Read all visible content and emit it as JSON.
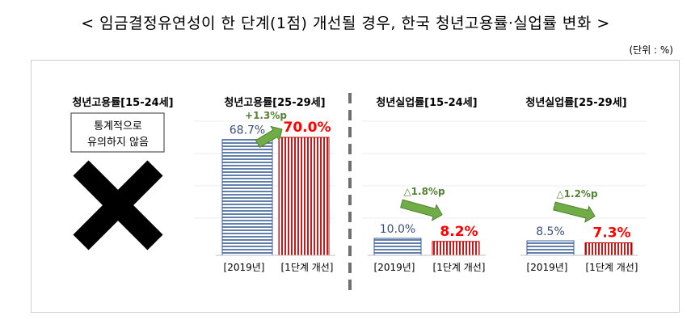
{
  "header": {
    "title": "< 임금결정유연성이 한 단계(1점) 개선될 경우, 한국 청년고용률·실업률 변화 >",
    "unit": "(단위 : %)"
  },
  "colors": {
    "baseline_stroke": "#3a5f9a",
    "improved_stroke": "#c00000",
    "arrow": "#70ad47",
    "change_text": "#548235",
    "improved_text": "#ff0000",
    "baseline_text": "#3a4f7a",
    "divider": "#707070"
  },
  "chart_data": [
    {
      "type": "bar",
      "title": "청년고용률[15-24세]",
      "categories": [],
      "values": [],
      "annotation": "통계적으로 유의하지 않음",
      "marker": "x-mark"
    },
    {
      "type": "bar",
      "title": "청년고용률[25-29세]",
      "categories": [
        "[2019년]",
        "[1단계 개선]"
      ],
      "values": [
        68.7,
        70.0
      ],
      "value_labels": [
        "68.7%",
        "70.0%"
      ],
      "change_label": "+1.3%p",
      "change_direction": "up"
    },
    {
      "type": "bar",
      "title": "청년실업률[15-24세]",
      "categories": [
        "[2019년]",
        "[1단계 개선]"
      ],
      "values": [
        10.0,
        8.2
      ],
      "value_labels": [
        "10.0%",
        "8.2%"
      ],
      "change_label": "△1.8%p",
      "change_direction": "down"
    },
    {
      "type": "bar",
      "title": "청년실업률[25-29세]",
      "categories": [
        "[2019년]",
        "[1단계 개선]"
      ],
      "values": [
        8.5,
        7.3
      ],
      "value_labels": [
        "8.5%",
        "7.3%"
      ],
      "change_label": "△1.2%p",
      "change_direction": "down"
    }
  ]
}
